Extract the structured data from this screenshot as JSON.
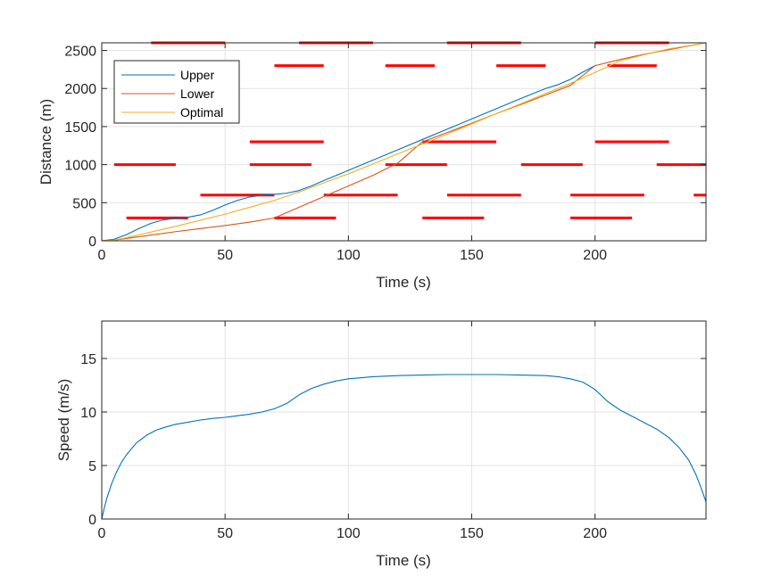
{
  "chart_data": [
    {
      "type": "line",
      "xlabel": "Time (s)",
      "ylabel": "Distance (m)",
      "xlim": [
        0,
        245
      ],
      "ylim": [
        0,
        2600
      ],
      "xticks": [
        0,
        50,
        100,
        150,
        200
      ],
      "yticks": [
        0,
        500,
        1000,
        1500,
        2000,
        2500
      ],
      "xtick_labels": [
        "0",
        "50",
        "100",
        "150",
        "200"
      ],
      "ytick_labels": [
        "0",
        "500",
        "1000",
        "1500",
        "2000",
        "2500"
      ],
      "grid": true,
      "legend_position": "top-left",
      "series": [
        {
          "name": "Upper",
          "color": "#0072BD",
          "x": [
            0,
            5,
            10,
            15,
            20,
            25,
            30,
            35,
            40,
            45,
            50,
            55,
            60,
            65,
            70,
            75,
            80,
            85,
            90,
            100,
            110,
            120,
            130,
            140,
            150,
            160,
            170,
            175,
            180,
            185,
            190,
            195,
            200
          ],
          "y": [
            0,
            20,
            80,
            160,
            230,
            275,
            295,
            310,
            340,
            400,
            470,
            530,
            575,
            600,
            610,
            625,
            660,
            720,
            790,
            925,
            1060,
            1195,
            1330,
            1465,
            1600,
            1735,
            1870,
            1935,
            2000,
            2050,
            2120,
            2215,
            2300
          ]
        },
        {
          "name": "Lower",
          "color": "#D95319",
          "x": [
            0,
            5,
            10,
            20,
            30,
            40,
            50,
            60,
            70,
            80,
            90,
            100,
            110,
            120,
            130,
            140,
            150,
            160,
            170,
            180,
            190,
            200,
            210,
            220,
            230,
            245
          ],
          "y": [
            0,
            10,
            30,
            75,
            120,
            160,
            200,
            245,
            300,
            440,
            580,
            720,
            860,
            1020,
            1300,
            1420,
            1545,
            1670,
            1790,
            1915,
            2040,
            2300,
            2380,
            2450,
            2510,
            2600
          ]
        },
        {
          "name": "Optimal",
          "color": "#EDB120",
          "x": [
            0,
            5,
            10,
            20,
            30,
            40,
            50,
            60,
            70,
            80,
            90,
            100,
            110,
            120,
            130,
            140,
            150,
            160,
            170,
            180,
            190,
            200,
            210,
            220,
            230,
            245
          ],
          "y": [
            0,
            10,
            40,
            115,
            190,
            270,
            350,
            440,
            530,
            640,
            760,
            880,
            1010,
            1140,
            1270,
            1400,
            1535,
            1670,
            1800,
            1935,
            2065,
            2210,
            2360,
            2445,
            2520,
            2600
          ]
        }
      ],
      "red_segments": {
        "color": "#FF0000",
        "items": [
          {
            "y": 2600,
            "x": [
              20,
              50
            ]
          },
          {
            "y": 2600,
            "x": [
              80,
              110
            ]
          },
          {
            "y": 2600,
            "x": [
              140,
              170
            ]
          },
          {
            "y": 2600,
            "x": [
              200,
              230
            ]
          },
          {
            "y": 2300,
            "x": [
              70,
              90
            ]
          },
          {
            "y": 2300,
            "x": [
              115,
              135
            ]
          },
          {
            "y": 2300,
            "x": [
              160,
              180
            ]
          },
          {
            "y": 2300,
            "x": [
              205,
              225
            ]
          },
          {
            "y": 1300,
            "x": [
              60,
              90
            ]
          },
          {
            "y": 1300,
            "x": [
              130,
              160
            ]
          },
          {
            "y": 1300,
            "x": [
              200,
              230
            ]
          },
          {
            "y": 1000,
            "x": [
              5,
              30
            ]
          },
          {
            "y": 1000,
            "x": [
              60,
              85
            ]
          },
          {
            "y": 1000,
            "x": [
              115,
              140
            ]
          },
          {
            "y": 1000,
            "x": [
              170,
              195
            ]
          },
          {
            "y": 1000,
            "x": [
              225,
              245
            ]
          },
          {
            "y": 600,
            "x": [
              40,
              70
            ]
          },
          {
            "y": 600,
            "x": [
              90,
              120
            ]
          },
          {
            "y": 600,
            "x": [
              140,
              170
            ]
          },
          {
            "y": 600,
            "x": [
              190,
              220
            ]
          },
          {
            "y": 600,
            "x": [
              240,
              245
            ]
          },
          {
            "y": 300,
            "x": [
              10,
              35
            ]
          },
          {
            "y": 300,
            "x": [
              70,
              95
            ]
          },
          {
            "y": 300,
            "x": [
              130,
              155
            ]
          },
          {
            "y": 300,
            "x": [
              190,
              215
            ]
          }
        ]
      }
    },
    {
      "type": "line",
      "xlabel": "Time (s)",
      "ylabel": "Speed (m/s)",
      "xlim": [
        0,
        245
      ],
      "ylim": [
        0,
        18.5
      ],
      "xticks": [
        0,
        50,
        100,
        150,
        200
      ],
      "yticks": [
        0,
        5,
        10,
        15
      ],
      "xtick_labels": [
        "0",
        "50",
        "100",
        "150",
        "200"
      ],
      "ytick_labels": [
        "0",
        "5",
        "10",
        "15"
      ],
      "grid": true,
      "series": [
        {
          "color": "#0072BD",
          "x": [
            0,
            1,
            2,
            4,
            6,
            8,
            10,
            14,
            18,
            22,
            26,
            30,
            35,
            40,
            45,
            50,
            55,
            60,
            65,
            70,
            75,
            80,
            85,
            90,
            95,
            100,
            110,
            120,
            130,
            140,
            150,
            160,
            170,
            180,
            185,
            190,
            195,
            200,
            205,
            210,
            215,
            220,
            225,
            230,
            234,
            238,
            241,
            243,
            245
          ],
          "y": [
            0,
            1.0,
            1.9,
            3.3,
            4.4,
            5.3,
            6.0,
            7.1,
            7.8,
            8.3,
            8.6,
            8.85,
            9.05,
            9.25,
            9.4,
            9.5,
            9.65,
            9.8,
            10.0,
            10.3,
            10.8,
            11.6,
            12.2,
            12.6,
            12.9,
            13.1,
            13.3,
            13.4,
            13.45,
            13.5,
            13.5,
            13.5,
            13.45,
            13.4,
            13.3,
            13.1,
            12.8,
            12.1,
            11.0,
            10.2,
            9.6,
            9.0,
            8.4,
            7.6,
            6.7,
            5.5,
            4.1,
            2.9,
            1.6
          ]
        }
      ]
    }
  ]
}
